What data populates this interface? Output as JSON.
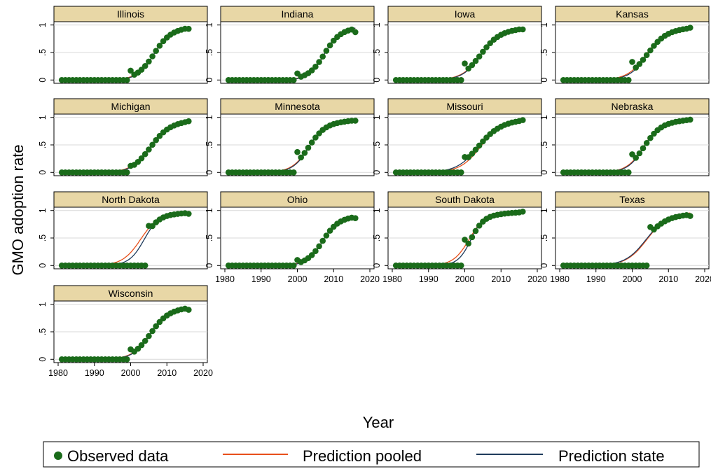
{
  "chart_data": {
    "type": "line",
    "layout": "small-multiples",
    "xlabel": "Year",
    "ylabel": "GMO adoption rate",
    "xlim": [
      1980,
      2020
    ],
    "ylim": [
      0,
      1
    ],
    "x_ticks": [
      "1980",
      "1990",
      "2000",
      "2010",
      "2020"
    ],
    "y_ticks": [
      "0",
      ".5",
      "1"
    ],
    "y_tick_values": [
      0,
      0.5,
      1
    ],
    "x_tick_values": [
      1980,
      1990,
      2000,
      2010,
      2020
    ],
    "grid": true,
    "legend_position": "bottom",
    "legend": {
      "observed": "Observed data",
      "pooled": "Prediction pooled",
      "state": "Prediction state"
    },
    "colors": {
      "observed": "#1a6b1a",
      "pooled": "#e8501b",
      "state": "#1f3b5c",
      "strip_bg": "#e8d7a6",
      "grid": "#d9d9d9"
    },
    "states": [
      {
        "name": "Illinois",
        "start": 2000,
        "obs_start": 0.17,
        "obs_end": 0.93,
        "pooled": {
          "mid": 2006.5,
          "k": 0.42,
          "L": 0.96
        },
        "state": {
          "mid": 2006.5,
          "k": 0.45,
          "L": 0.96
        }
      },
      {
        "name": "Indiana",
        "start": 2000,
        "obs_start": 0.12,
        "obs_end": 0.87,
        "pooled": {
          "mid": 2007.5,
          "k": 0.45,
          "L": 0.96
        },
        "state": {
          "mid": 2007.5,
          "k": 0.48,
          "L": 0.96
        }
      },
      {
        "name": "Iowa",
        "start": 2000,
        "obs_start": 0.3,
        "obs_end": 0.92,
        "pooled": {
          "mid": 2004.5,
          "k": 0.38,
          "L": 0.94
        },
        "state": {
          "mid": 2004.5,
          "k": 0.4,
          "L": 0.94
        }
      },
      {
        "name": "Kansas",
        "start": 2000,
        "obs_start": 0.33,
        "obs_end": 0.95,
        "pooled": {
          "mid": 2004.0,
          "k": 0.38,
          "L": 0.95
        },
        "state": {
          "mid": 2004.3,
          "k": 0.4,
          "L": 0.95
        }
      },
      {
        "name": "Michigan",
        "start": 2000,
        "obs_start": 0.12,
        "obs_end": 0.93,
        "pooled": {
          "mid": 2005.5,
          "k": 0.38,
          "L": 0.94
        },
        "state": {
          "mid": 2005.5,
          "k": 0.4,
          "L": 0.94
        }
      },
      {
        "name": "Minnesota",
        "start": 2000,
        "obs_start": 0.37,
        "obs_end": 0.94,
        "pooled": {
          "mid": 2003.3,
          "k": 0.42,
          "L": 0.95
        },
        "state": {
          "mid": 2003.3,
          "k": 0.45,
          "L": 0.95
        }
      },
      {
        "name": "Missouri",
        "start": 2000,
        "obs_start": 0.28,
        "obs_end": 0.95,
        "pooled": {
          "mid": 2004.5,
          "k": 0.35,
          "L": 0.96
        },
        "state": {
          "mid": 2003.8,
          "k": 0.34,
          "L": 0.96
        }
      },
      {
        "name": "Nebraska",
        "start": 2000,
        "obs_start": 0.33,
        "obs_end": 0.96,
        "pooled": {
          "mid": 2003.3,
          "k": 0.42,
          "L": 0.96
        },
        "state": {
          "mid": 2003.4,
          "k": 0.44,
          "L": 0.96
        }
      },
      {
        "name": "North Dakota",
        "start": 2005,
        "obs_start": 0.72,
        "obs_end": 0.94,
        "pooled": {
          "mid": 2002.8,
          "k": 0.4,
          "L": 0.96
        },
        "state": {
          "mid": 2003.8,
          "k": 0.48,
          "L": 0.96
        }
      },
      {
        "name": "Ohio",
        "start": 2000,
        "obs_start": 0.1,
        "obs_end": 0.86,
        "pooled": {
          "mid": 2007.0,
          "k": 0.45,
          "L": 0.9
        },
        "state": {
          "mid": 2007.0,
          "k": 0.48,
          "L": 0.9
        }
      },
      {
        "name": "South Dakota",
        "start": 2000,
        "obs_start": 0.47,
        "obs_end": 0.98,
        "pooled": {
          "mid": 2001.3,
          "k": 0.45,
          "L": 0.97
        },
        "state": {
          "mid": 2001.8,
          "k": 0.55,
          "L": 0.97
        }
      },
      {
        "name": "Texas",
        "start": 2005,
        "obs_start": 0.7,
        "obs_end": 0.9,
        "pooled": {
          "mid": 2004.2,
          "k": 0.35,
          "L": 0.97
        },
        "state": {
          "mid": 2003.8,
          "k": 0.35,
          "L": 0.94
        }
      },
      {
        "name": "Wisconsin",
        "start": 2000,
        "obs_start": 0.18,
        "obs_end": 0.9,
        "pooled": {
          "mid": 2005.5,
          "k": 0.4,
          "L": 0.95
        },
        "state": {
          "mid": 2005.5,
          "k": 0.42,
          "L": 0.95
        }
      }
    ]
  }
}
